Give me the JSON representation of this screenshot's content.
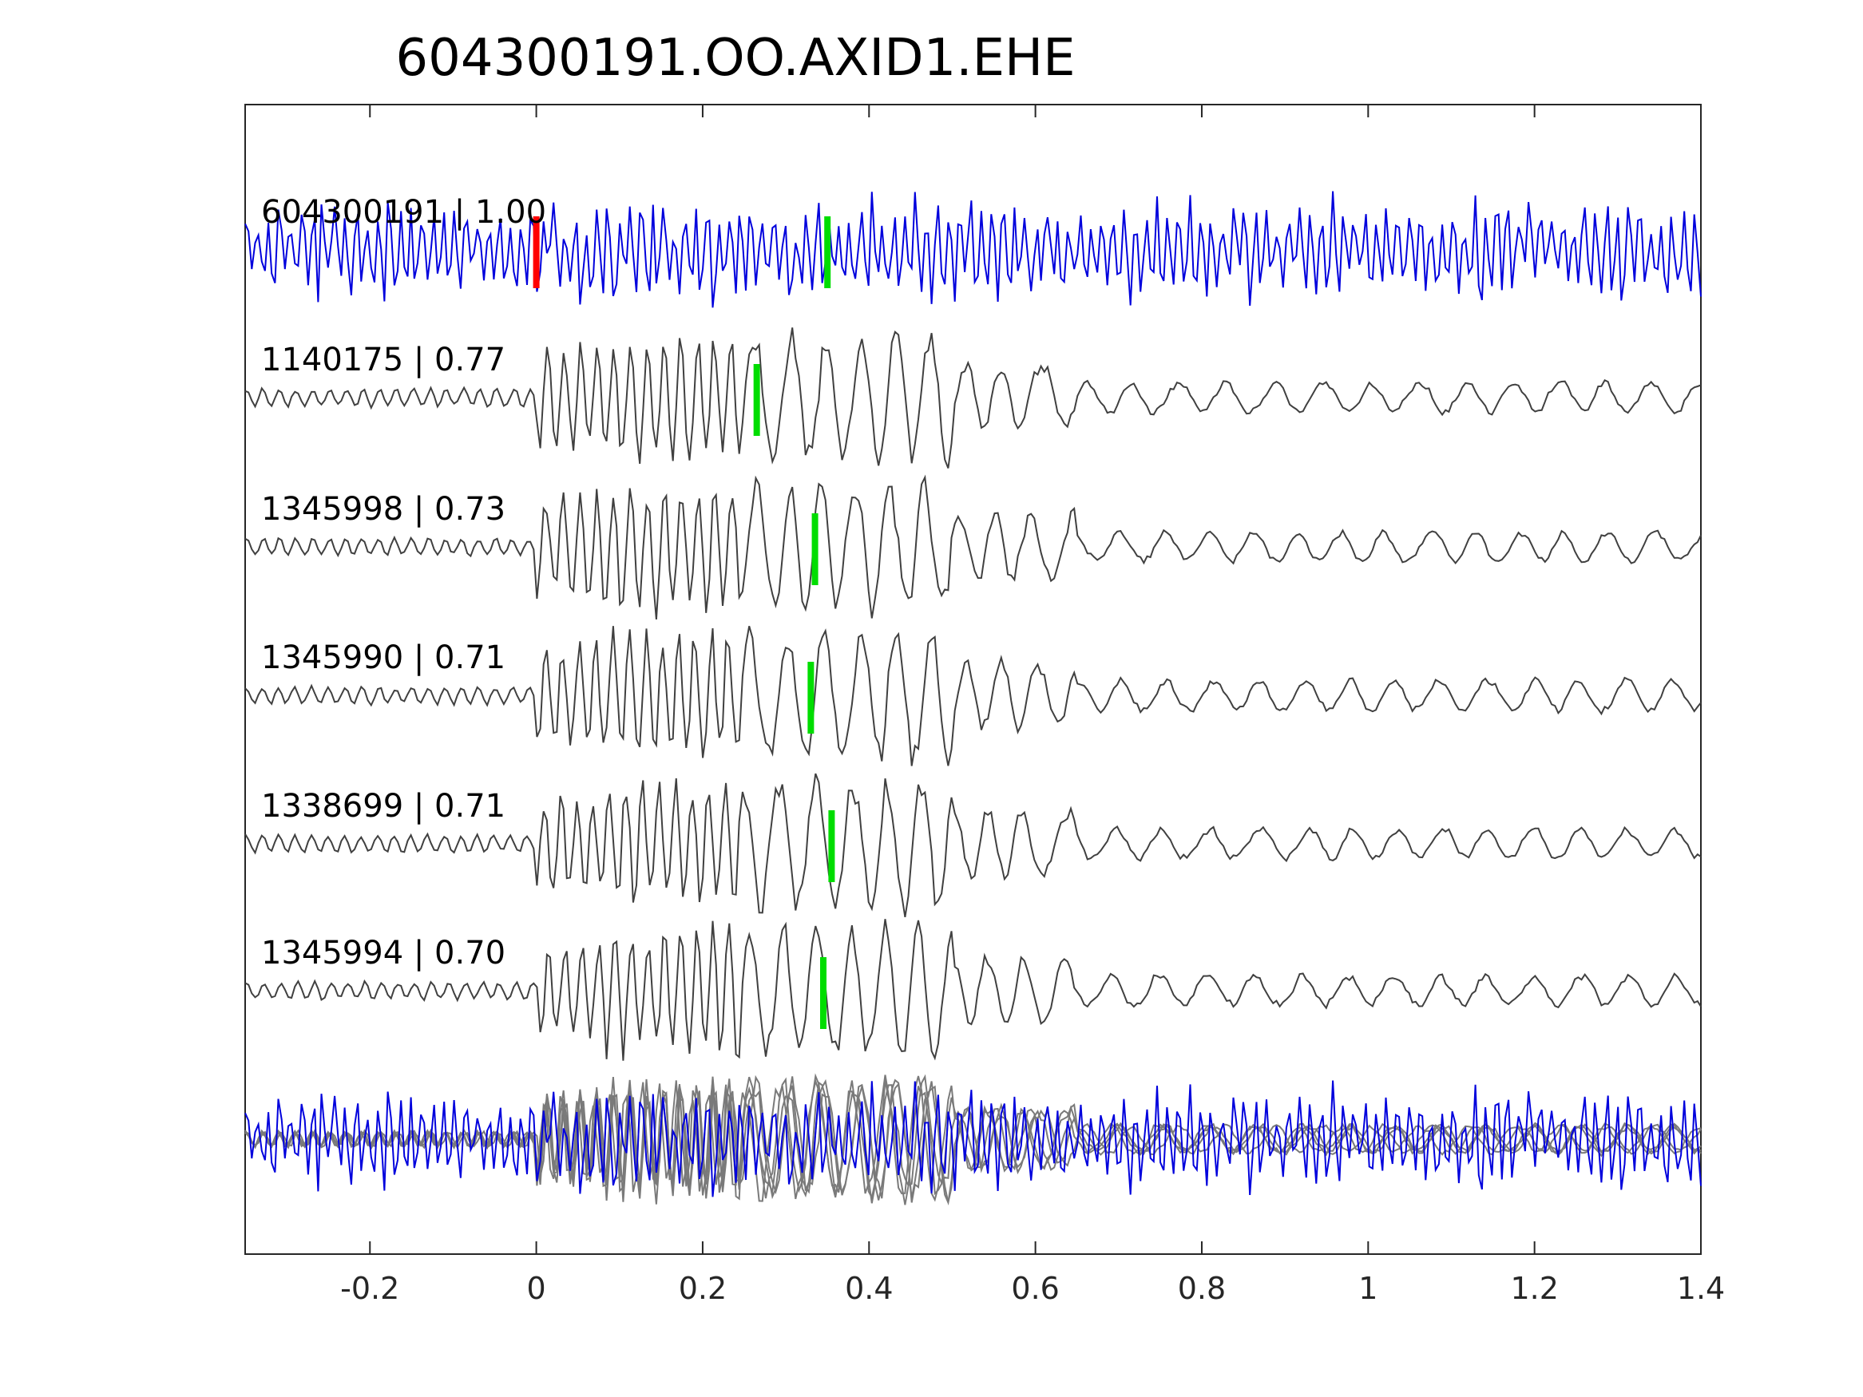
{
  "chart_data": {
    "type": "line",
    "title": "604300191.OO.AXID1.EHE",
    "xlabel": "",
    "ylabel": "",
    "xlim": [
      -0.35,
      1.4
    ],
    "xticks": [
      -0.2,
      0,
      0.2,
      0.4,
      0.6,
      0.8,
      1,
      1.2,
      1.4
    ],
    "xtick_labels": [
      "-0.2",
      "0",
      "0.2",
      "0.4",
      "0.6",
      "0.8",
      "1",
      "1.2",
      "1.4"
    ],
    "grid": false,
    "colors": {
      "target": "#0000dd",
      "template": "#404040",
      "overlay": "#7a7a7a",
      "p_pick": "#ff0000",
      "s_pick": "#00dd00",
      "axes": "#262626"
    },
    "traces": [
      {
        "label": "604300191 | 1.00",
        "id": "604300191",
        "cc": "1.00",
        "role": "target",
        "p_pick": 0.0,
        "s_pick": 0.35
      },
      {
        "label": "1140175 | 0.77",
        "id": "1140175",
        "cc": "0.77",
        "role": "template",
        "s_pick": 0.265
      },
      {
        "label": "1345998 | 0.73",
        "id": "1345998",
        "cc": "0.73",
        "role": "template",
        "s_pick": 0.335
      },
      {
        "label": "1345990 | 0.71",
        "id": "1345990",
        "cc": "0.71",
        "role": "template",
        "s_pick": 0.33
      },
      {
        "label": "1338699 | 0.71",
        "id": "1338699",
        "cc": "0.71",
        "role": "template",
        "s_pick": 0.355
      },
      {
        "label": "1345994 | 0.70",
        "id": "1345994",
        "cc": "0.70",
        "role": "template",
        "s_pick": 0.345
      }
    ],
    "overlay": "all traces stacked"
  }
}
